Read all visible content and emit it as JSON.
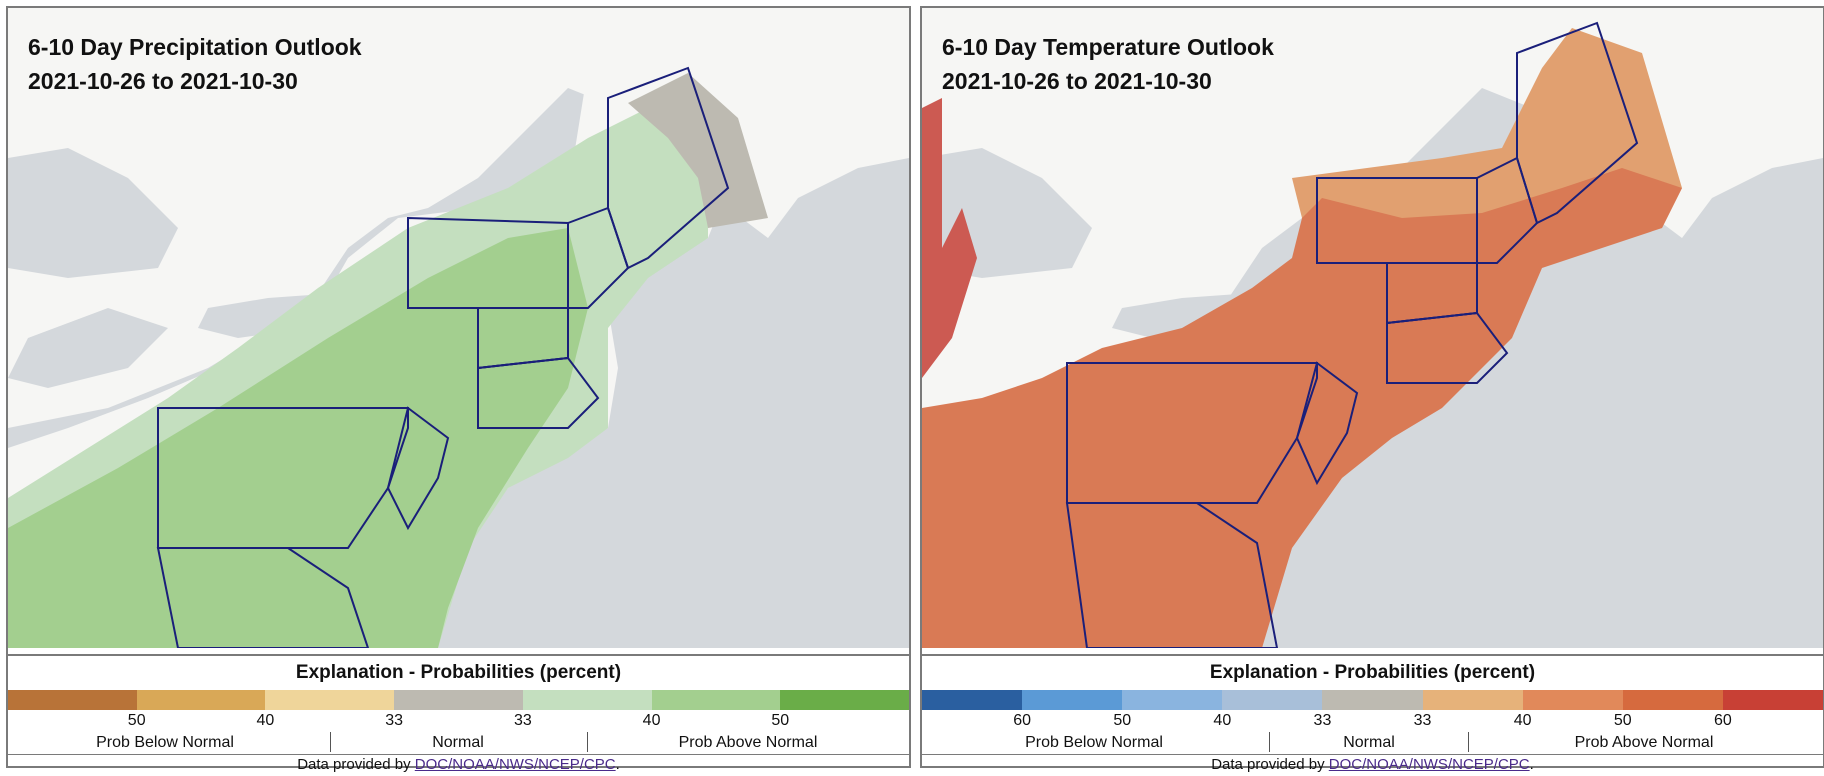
{
  "precip": {
    "title": "6-10 Day Precipitation Outlook",
    "dates": "2021-10-26 to 2021-10-30",
    "legend_title": "Explanation - Probabilities (percent)",
    "swatches": [
      "#b87338",
      "#d9a857",
      "#efd59a",
      "#bdbab1",
      "#c4dfbf",
      "#a3cf8f",
      "#6aad48"
    ],
    "ticks": [
      "50",
      "40",
      "33",
      "33",
      "40",
      "50"
    ],
    "categories": [
      "Prob Below Normal",
      "Normal",
      "Prob Above Normal"
    ],
    "credit_prefix": "Data provided by ",
    "credit_link": "DOC/NOAA/NWS/NCEP/CPC",
    "credit_suffix": "."
  },
  "temp": {
    "title": "6-10 Day Temperature Outlook",
    "dates": "2021-10-26 to 2021-10-30",
    "legend_title": "Explanation - Probabilities (percent)",
    "swatches": [
      "#2a5fa0",
      "#5b9ad6",
      "#8ab4df",
      "#a8bfd9",
      "#bdbab1",
      "#e6b27a",
      "#e1895a",
      "#d66a3e",
      "#c84035"
    ],
    "ticks": [
      "60",
      "50",
      "40",
      "33",
      "33",
      "40",
      "50",
      "60"
    ],
    "categories": [
      "Prob Below Normal",
      "Normal",
      "Prob Above Normal"
    ],
    "credit_prefix": "Data provided by ",
    "credit_link": "DOC/NOAA/NWS/NCEP/CPC",
    "credit_suffix": "."
  },
  "colors": {
    "ocean": "#d4d8dc",
    "land": "#f6f6f4",
    "state_border": "#1a1f7a",
    "precip_above_33": "#c4dfbf",
    "precip_above_40": "#a3cf8f",
    "precip_normal": "#bdbab1",
    "temp_above_40": "#e1a070",
    "temp_above_50": "#d97a55",
    "temp_above_60": "#cc5a52"
  }
}
